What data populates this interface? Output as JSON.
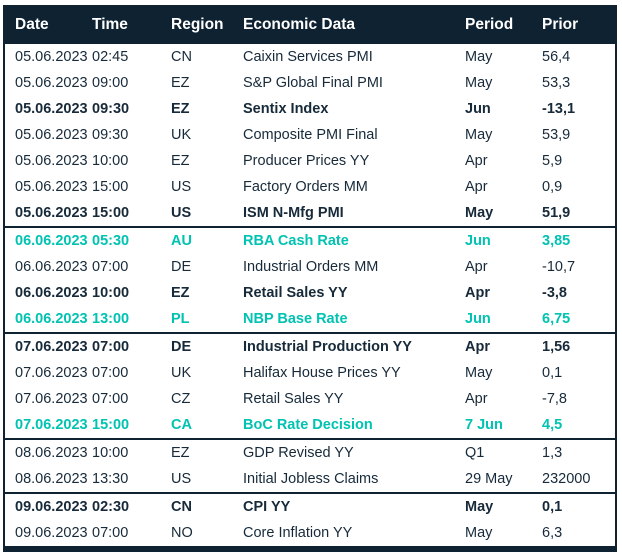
{
  "colors": {
    "header_background": "#0E2232",
    "body_text": "#172A3A",
    "rate_decision_accent": "#00C3B1",
    "border": "#0E2232"
  },
  "table": {
    "columns": [
      {
        "key": "date",
        "label": "Date"
      },
      {
        "key": "time",
        "label": "Time"
      },
      {
        "key": "region",
        "label": "Region"
      },
      {
        "key": "event",
        "label": "Economic Data"
      },
      {
        "key": "period",
        "label": "Period"
      },
      {
        "key": "prior",
        "label": "Prior"
      }
    ],
    "rows": [
      {
        "date": "05.06.2023",
        "time": "02:45",
        "region": "CN",
        "event": "Caixin Services PMI",
        "period": "May",
        "prior": "56,4",
        "style": "normal"
      },
      {
        "date": "05.06.2023",
        "time": "09:00",
        "region": "EZ",
        "event": "S&P Global Final PMI",
        "period": "May",
        "prior": "53,3",
        "style": "normal"
      },
      {
        "date": "05.06.2023",
        "time": "09:30",
        "region": "EZ",
        "event": "Sentix Index",
        "period": "Jun",
        "prior": "-13,1",
        "style": "bold"
      },
      {
        "date": "05.06.2023",
        "time": "09:30",
        "region": "UK",
        "event": "Composite PMI Final",
        "period": "May",
        "prior": "53,9",
        "style": "normal"
      },
      {
        "date": "05.06.2023",
        "time": "10:00",
        "region": "EZ",
        "event": "Producer Prices YY",
        "period": "Apr",
        "prior": "5,9",
        "style": "normal"
      },
      {
        "date": "05.06.2023",
        "time": "15:00",
        "region": "US",
        "event": "Factory Orders MM",
        "period": "Apr",
        "prior": "0,9",
        "style": "normal"
      },
      {
        "date": "05.06.2023",
        "time": "15:00",
        "region": "US",
        "event": "ISM N-Mfg PMI",
        "period": "May",
        "prior": "51,9",
        "style": "bold"
      },
      {
        "date": "06.06.2023",
        "time": "05:30",
        "region": "AU",
        "event": "RBA Cash Rate",
        "period": "Jun",
        "prior": "3,85",
        "style": "teal"
      },
      {
        "date": "06.06.2023",
        "time": "07:00",
        "region": "DE",
        "event": "Industrial Orders MM",
        "period": "Apr",
        "prior": "-10,7",
        "style": "normal"
      },
      {
        "date": "06.06.2023",
        "time": "10:00",
        "region": "EZ",
        "event": "Retail Sales YY",
        "period": "Apr",
        "prior": "-3,8",
        "style": "bold"
      },
      {
        "date": "06.06.2023",
        "time": "13:00",
        "region": "PL",
        "event": "NBP Base Rate",
        "period": "Jun",
        "prior": "6,75",
        "style": "teal"
      },
      {
        "date": "07.06.2023",
        "time": "07:00",
        "region": "DE",
        "event": "Industrial Production YY",
        "period": "Apr",
        "prior": "1,56",
        "style": "bold"
      },
      {
        "date": "07.06.2023",
        "time": "07:00",
        "region": "UK",
        "event": "Halifax House Prices YY",
        "period": "May",
        "prior": "0,1",
        "style": "normal"
      },
      {
        "date": "07.06.2023",
        "time": "07:00",
        "region": "CZ",
        "event": "Retail Sales YY",
        "period": "Apr",
        "prior": "-7,8",
        "style": "normal"
      },
      {
        "date": "07.06.2023",
        "time": "15:00",
        "region": "CA",
        "event": "BoC Rate Decision",
        "period": "7 Jun",
        "prior": "4,5",
        "style": "teal"
      },
      {
        "date": "08.06.2023",
        "time": "10:00",
        "region": "EZ",
        "event": "GDP Revised YY",
        "period": "Q1",
        "prior": "1,3",
        "style": "normal"
      },
      {
        "date": "08.06.2023",
        "time": "13:30",
        "region": "US",
        "event": "Initial Jobless Claims",
        "period": "29 May",
        "prior": "232000",
        "style": "normal"
      },
      {
        "date": "09.06.2023",
        "time": "02:30",
        "region": "CN",
        "event": "CPI YY",
        "period": "May",
        "prior": "0,1",
        "style": "bold"
      },
      {
        "date": "09.06.2023",
        "time": "07:00",
        "region": "NO",
        "event": "Core Inflation YY",
        "period": "May",
        "prior": "6,3",
        "style": "normal"
      }
    ]
  }
}
